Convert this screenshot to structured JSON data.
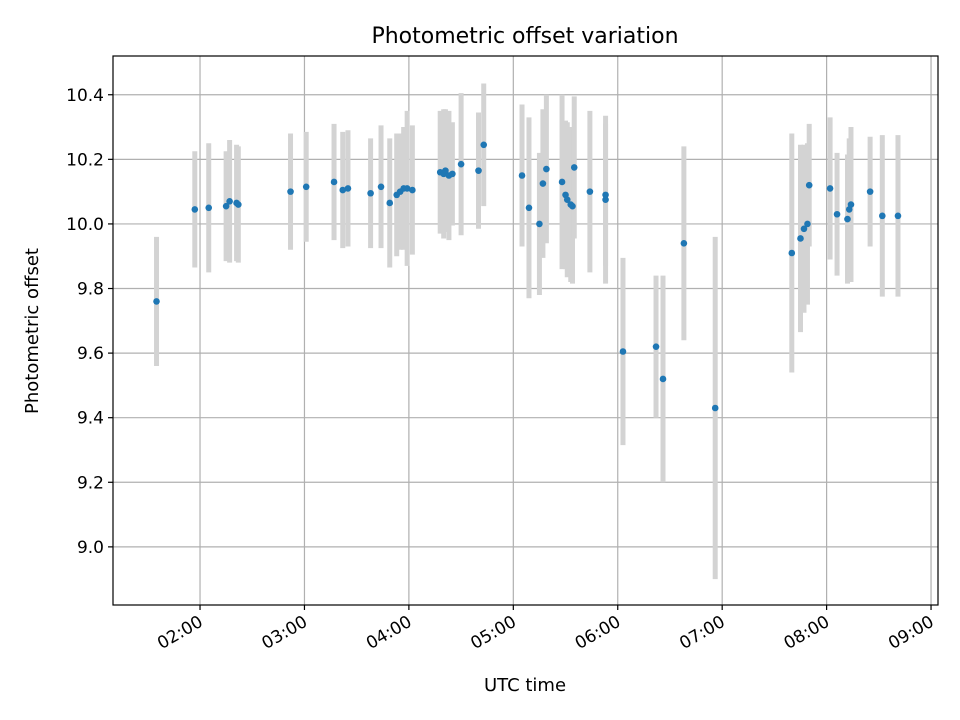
{
  "chart_data": {
    "type": "scatter",
    "title": "Photometric offset variation",
    "xlabel": "UTC time",
    "ylabel": "Photometric offset",
    "xlim": [
      "01:10",
      "09:04"
    ],
    "ylim": [
      8.82,
      10.52
    ],
    "x_ticks": [
      "02:00",
      "03:00",
      "04:00",
      "05:00",
      "06:00",
      "07:00",
      "08:00",
      "09:00"
    ],
    "y_ticks": [
      9.0,
      9.2,
      9.4,
      9.6,
      9.8,
      10.0,
      10.2,
      10.4
    ],
    "grid": true,
    "marker_color": "#1f77b4",
    "errorbar_color": "#d3d3d3",
    "series": [
      {
        "x": [
          "01:35",
          "01:57",
          "02:05",
          "02:15",
          "02:17",
          "02:21",
          "02:22",
          "02:52",
          "03:01",
          "03:17",
          "03:22",
          "03:25",
          "03:38",
          "03:44",
          "03:49",
          "03:53",
          "03:55",
          "03:57",
          "03:59",
          "04:02",
          "04:18",
          "04:20",
          "04:21",
          "04:23",
          "04:25",
          "04:30",
          "04:40",
          "04:43",
          "05:05",
          "05:09",
          "05:15",
          "05:17",
          "05:19",
          "05:28",
          "05:30",
          "05:31",
          "05:33",
          "05:34",
          "05:35",
          "05:44",
          "05:53",
          "05:53",
          "06:03",
          "06:22",
          "06:26",
          "06:38",
          "06:56",
          "07:40",
          "07:45",
          "07:47",
          "07:49",
          "07:50",
          "08:02",
          "08:06",
          "08:12",
          "08:13",
          "08:14",
          "08:25",
          "08:32",
          "08:41"
        ],
        "y": [
          9.76,
          10.045,
          10.05,
          10.055,
          10.07,
          10.065,
          10.06,
          10.1,
          10.115,
          10.13,
          10.105,
          10.11,
          10.095,
          10.115,
          10.065,
          10.09,
          10.1,
          10.11,
          10.11,
          10.105,
          10.16,
          10.155,
          10.165,
          10.15,
          10.155,
          10.185,
          10.165,
          10.245,
          10.15,
          10.05,
          10.0,
          10.125,
          10.17,
          10.13,
          10.09,
          10.075,
          10.06,
          10.055,
          10.175,
          10.1,
          10.075,
          10.09,
          9.605,
          9.62,
          9.52,
          9.94,
          9.43,
          9.91,
          9.955,
          9.985,
          10.0,
          10.12,
          10.11,
          10.03,
          10.015,
          10.045,
          10.06,
          10.1,
          10.025,
          10.025
        ],
        "yerr": [
          0.2,
          0.18,
          0.2,
          0.17,
          0.19,
          0.18,
          0.18,
          0.18,
          0.17,
          0.18,
          0.18,
          0.18,
          0.17,
          0.19,
          0.2,
          0.19,
          0.18,
          0.19,
          0.24,
          0.2,
          0.19,
          0.2,
          0.19,
          0.2,
          0.16,
          0.22,
          0.18,
          0.19,
          0.22,
          0.28,
          0.22,
          0.23,
          0.23,
          0.27,
          0.23,
          0.24,
          0.24,
          0.24,
          0.22,
          0.25,
          0.26,
          0.22,
          0.29,
          0.22,
          0.32,
          0.3,
          0.53,
          0.37,
          0.29,
          0.26,
          0.25,
          0.19,
          0.22,
          0.19,
          0.2,
          0.22,
          0.24,
          0.17,
          0.25,
          0.25
        ]
      }
    ]
  }
}
